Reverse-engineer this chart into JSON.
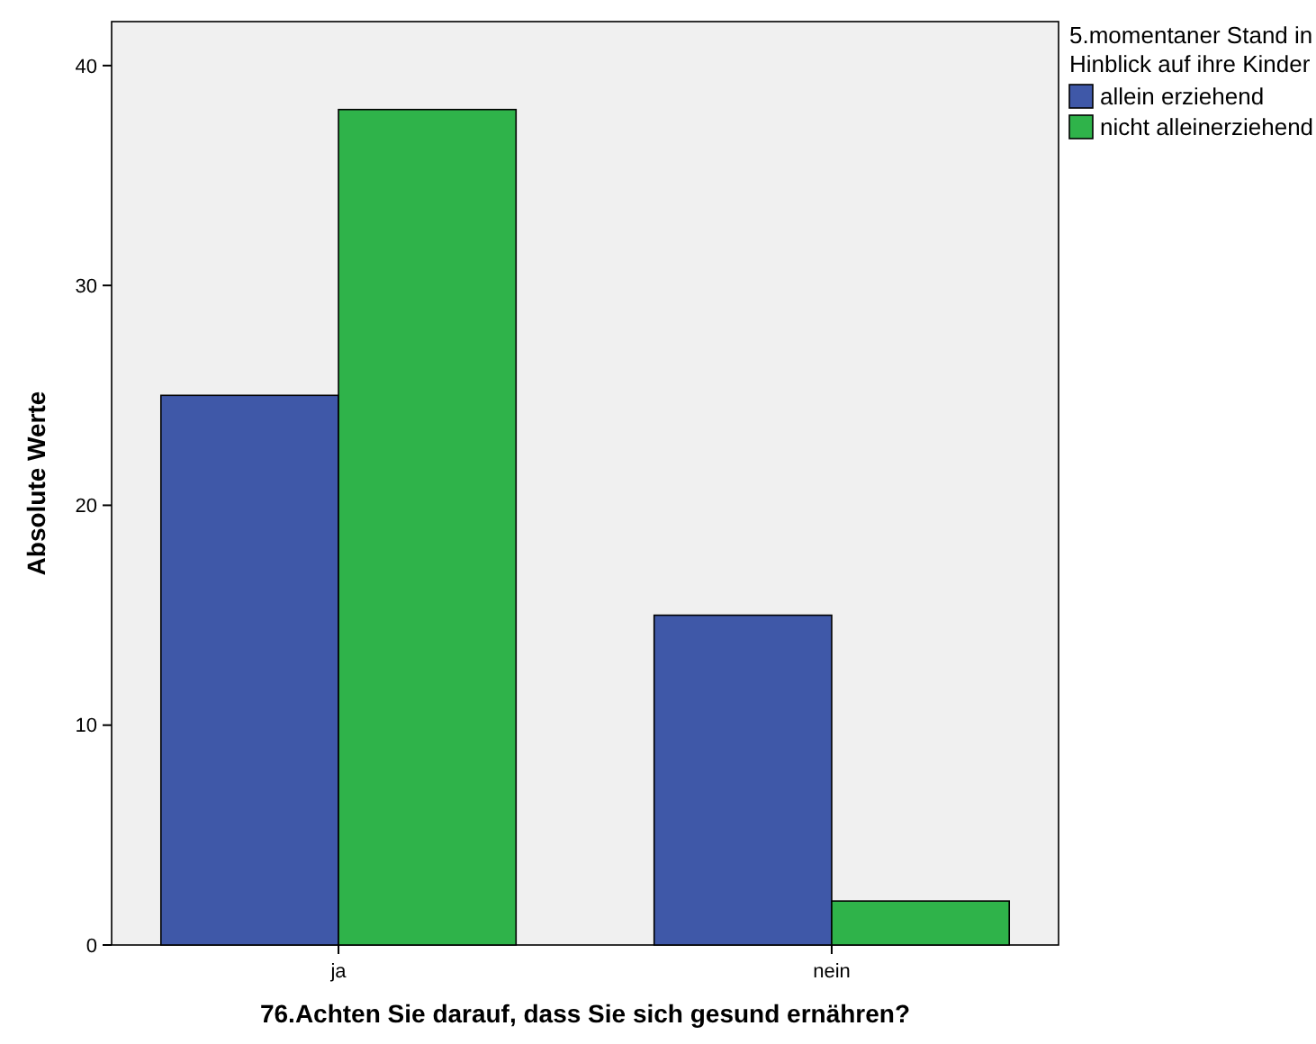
{
  "chart_data": {
    "type": "bar",
    "xlabel": "76.Achten Sie darauf, dass Sie sich gesund ernähren?",
    "ylabel": "Absolute Werte",
    "legend_title": "5.momentaner Stand in Hinblick auf ihre Kinder",
    "categories": [
      "ja",
      "nein"
    ],
    "series": [
      {
        "name": "allein erziehend",
        "color": "#3f58a8",
        "values": [
          25,
          15
        ]
      },
      {
        "name": "nicht alleinerziehend",
        "color": "#2fb34a",
        "values": [
          38,
          2
        ]
      }
    ],
    "ylim": [
      0,
      42
    ],
    "yticks": [
      0,
      10,
      20,
      30,
      40
    ],
    "grid": false,
    "legend": "top right"
  }
}
